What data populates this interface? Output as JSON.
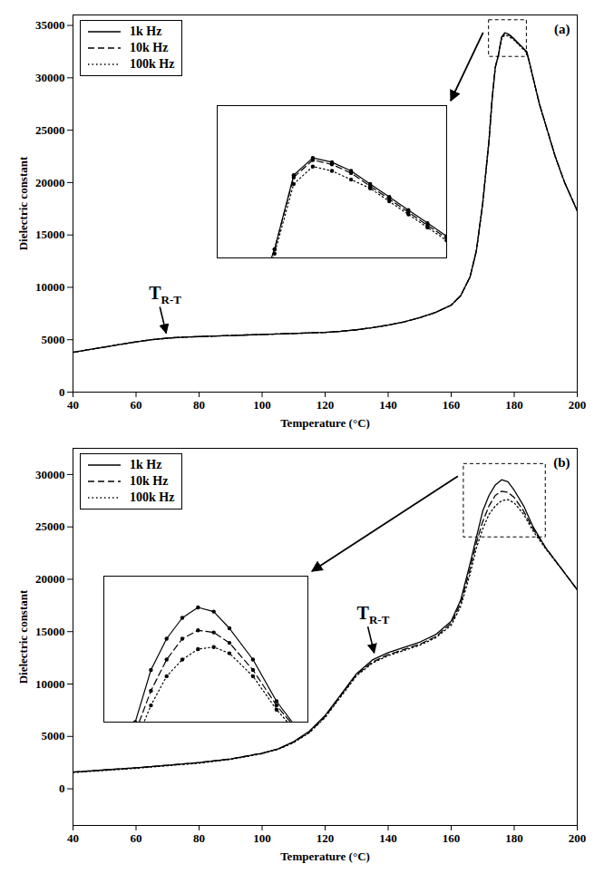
{
  "chart_data": [
    {
      "type": "line",
      "panel": "(a)",
      "x_label": "Temperature (°C)",
      "y_label": "Dielectric constant",
      "x": [
        40,
        45,
        50,
        55,
        60,
        65,
        70,
        75,
        80,
        85,
        90,
        95,
        100,
        105,
        110,
        115,
        120,
        125,
        130,
        135,
        140,
        145,
        150,
        155,
        160,
        163,
        166,
        168,
        170,
        172,
        173,
        174,
        175,
        176,
        177,
        178,
        179,
        180,
        181,
        182,
        183,
        184,
        186,
        188,
        190,
        193,
        196,
        200
      ],
      "series": [
        {
          "name": "1k Hz",
          "color": "#000000",
          "line_style": "solid",
          "values": [
            3800,
            4050,
            4300,
            4550,
            4800,
            5000,
            5150,
            5250,
            5300,
            5350,
            5400,
            5450,
            5500,
            5550,
            5600,
            5650,
            5700,
            5800,
            5950,
            6150,
            6400,
            6700,
            7100,
            7600,
            8300,
            9200,
            11000,
            13500,
            18000,
            24000,
            28000,
            31000,
            32200,
            33900,
            34300,
            34200,
            34000,
            33700,
            33400,
            33100,
            32800,
            32500,
            30000,
            27500,
            25500,
            22500,
            20000,
            17300
          ]
        },
        {
          "name": "10k Hz",
          "color": "#000000",
          "line_style": "dashed",
          "values": [
            3800,
            4050,
            4300,
            4550,
            4800,
            5000,
            5150,
            5250,
            5300,
            5350,
            5400,
            5450,
            5500,
            5550,
            5600,
            5650,
            5700,
            5800,
            5950,
            6150,
            6400,
            6700,
            7100,
            7600,
            8300,
            9200,
            11000,
            13500,
            18000,
            24000,
            28000,
            31000,
            32200,
            33850,
            34250,
            34150,
            33950,
            33650,
            33350,
            33050,
            32750,
            32450,
            30000,
            27500,
            25500,
            22500,
            20000,
            17300
          ]
        },
        {
          "name": "100k Hz",
          "color": "#000000",
          "line_style": "dotted",
          "values": [
            3800,
            4050,
            4300,
            4550,
            4800,
            5000,
            5150,
            5250,
            5300,
            5350,
            5400,
            5450,
            5500,
            5550,
            5600,
            5650,
            5700,
            5800,
            5950,
            6150,
            6400,
            6700,
            7100,
            7600,
            8300,
            9200,
            11000,
            13500,
            18000,
            24000,
            28000,
            31000,
            32100,
            33700,
            34100,
            34000,
            33800,
            33600,
            33300,
            33000,
            32700,
            32400,
            30000,
            27500,
            25500,
            22500,
            20000,
            17300
          ]
        }
      ],
      "xlim": [
        40,
        200
      ],
      "ylim": [
        0,
        36000
      ],
      "xticks": [
        40,
        60,
        80,
        100,
        120,
        140,
        160,
        180,
        200
      ],
      "yticks": [
        0,
        5000,
        10000,
        15000,
        20000,
        25000,
        30000,
        35000
      ],
      "legend": "top-left",
      "annotations": [
        {
          "text": "T",
          "subscript": "R-T",
          "x": 70,
          "y": 5150
        }
      ],
      "inset": {
        "xlim": [
          172,
          184
        ],
        "ylim": [
          32000,
          35500
        ],
        "marker": "circle"
      }
    },
    {
      "type": "line",
      "panel": "(b)",
      "x_label": "Temperature (°C)",
      "y_label": "Dielectric constant",
      "x": [
        40,
        50,
        60,
        70,
        80,
        90,
        100,
        105,
        110,
        115,
        120,
        125,
        130,
        135,
        140,
        145,
        150,
        155,
        160,
        163,
        166,
        168,
        170,
        172,
        174,
        176,
        178,
        180,
        183,
        186,
        190,
        195,
        200
      ],
      "series": [
        {
          "name": "1k Hz",
          "color": "#000000",
          "line_style": "solid",
          "values": [
            1600,
            1800,
            2000,
            2250,
            2500,
            2850,
            3400,
            3800,
            4500,
            5500,
            7000,
            9000,
            11000,
            12300,
            13000,
            13500,
            14000,
            14700,
            16000,
            18000,
            21500,
            24000,
            26500,
            28000,
            29000,
            29500,
            29300,
            28500,
            27000,
            25000,
            23000,
            21000,
            19000
          ]
        },
        {
          "name": "10k Hz",
          "color": "#000000",
          "line_style": "dashed",
          "values": [
            1600,
            1800,
            2000,
            2250,
            2500,
            2850,
            3400,
            3800,
            4450,
            5400,
            6900,
            8900,
            10900,
            12100,
            12800,
            13300,
            13800,
            14500,
            15800,
            17700,
            21000,
            23500,
            25500,
            27000,
            28000,
            28400,
            28300,
            27800,
            26500,
            24800,
            23000,
            21000,
            19000
          ]
        },
        {
          "name": "100k Hz",
          "color": "#000000",
          "line_style": "dotted",
          "values": [
            1550,
            1750,
            1950,
            2200,
            2450,
            2800,
            3350,
            3750,
            4400,
            5350,
            6800,
            8800,
            10800,
            12000,
            12700,
            13200,
            13700,
            14400,
            15600,
            17400,
            20500,
            23000,
            24800,
            26200,
            27000,
            27500,
            27600,
            27300,
            26200,
            24600,
            22900,
            21000,
            19000
          ]
        }
      ],
      "xlim": [
        40,
        200
      ],
      "ylim": [
        -3500,
        32500
      ],
      "xticks": [
        40,
        60,
        80,
        100,
        120,
        140,
        160,
        180,
        200
      ],
      "yticks": [
        0,
        5000,
        10000,
        15000,
        20000,
        25000,
        30000
      ],
      "legend": "top-left",
      "annotations": [
        {
          "text": "T",
          "subscript": "R-T",
          "x": 136,
          "y": 12500
        }
      ],
      "inset": {
        "xlim": [
          164,
          190
        ],
        "ylim": [
          24000,
          31000
        ],
        "marker": "circle"
      }
    }
  ]
}
